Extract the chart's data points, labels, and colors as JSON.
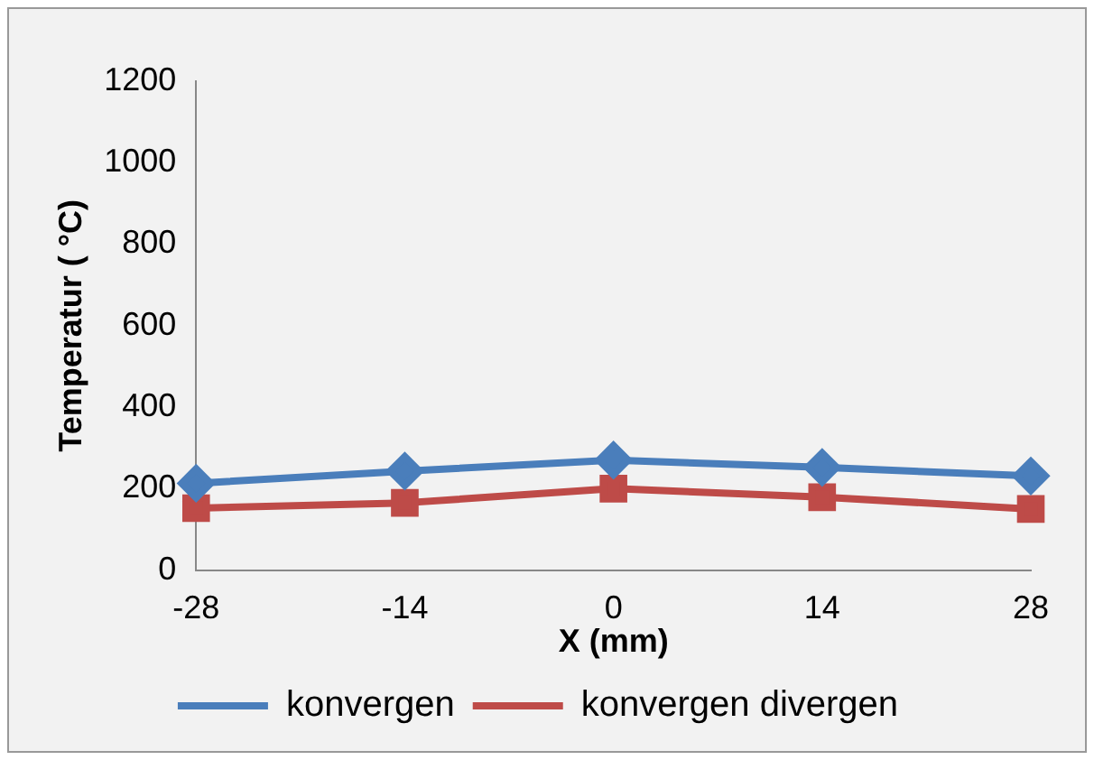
{
  "chart_data": {
    "type": "line",
    "xlabel": "X (mm)",
    "ylabel": "Temperatur ( °C)",
    "categories": [
      "-28",
      "-14",
      "0",
      "14",
      "28"
    ],
    "series": [
      {
        "name": "konvergen",
        "color": "#4a7ebb",
        "marker": "diamond",
        "values": [
          213,
          243,
          270,
          252,
          231
        ]
      },
      {
        "name": "konvergen divergen",
        "color": "#be4b48",
        "marker": "square",
        "values": [
          152,
          165,
          200,
          179,
          150
        ]
      }
    ],
    "ylim": [
      0,
      1200
    ],
    "yticks": [
      0,
      200,
      400,
      600,
      800,
      1000,
      1200
    ],
    "grid": false,
    "legend": "bottom",
    "line_style": "solid"
  }
}
